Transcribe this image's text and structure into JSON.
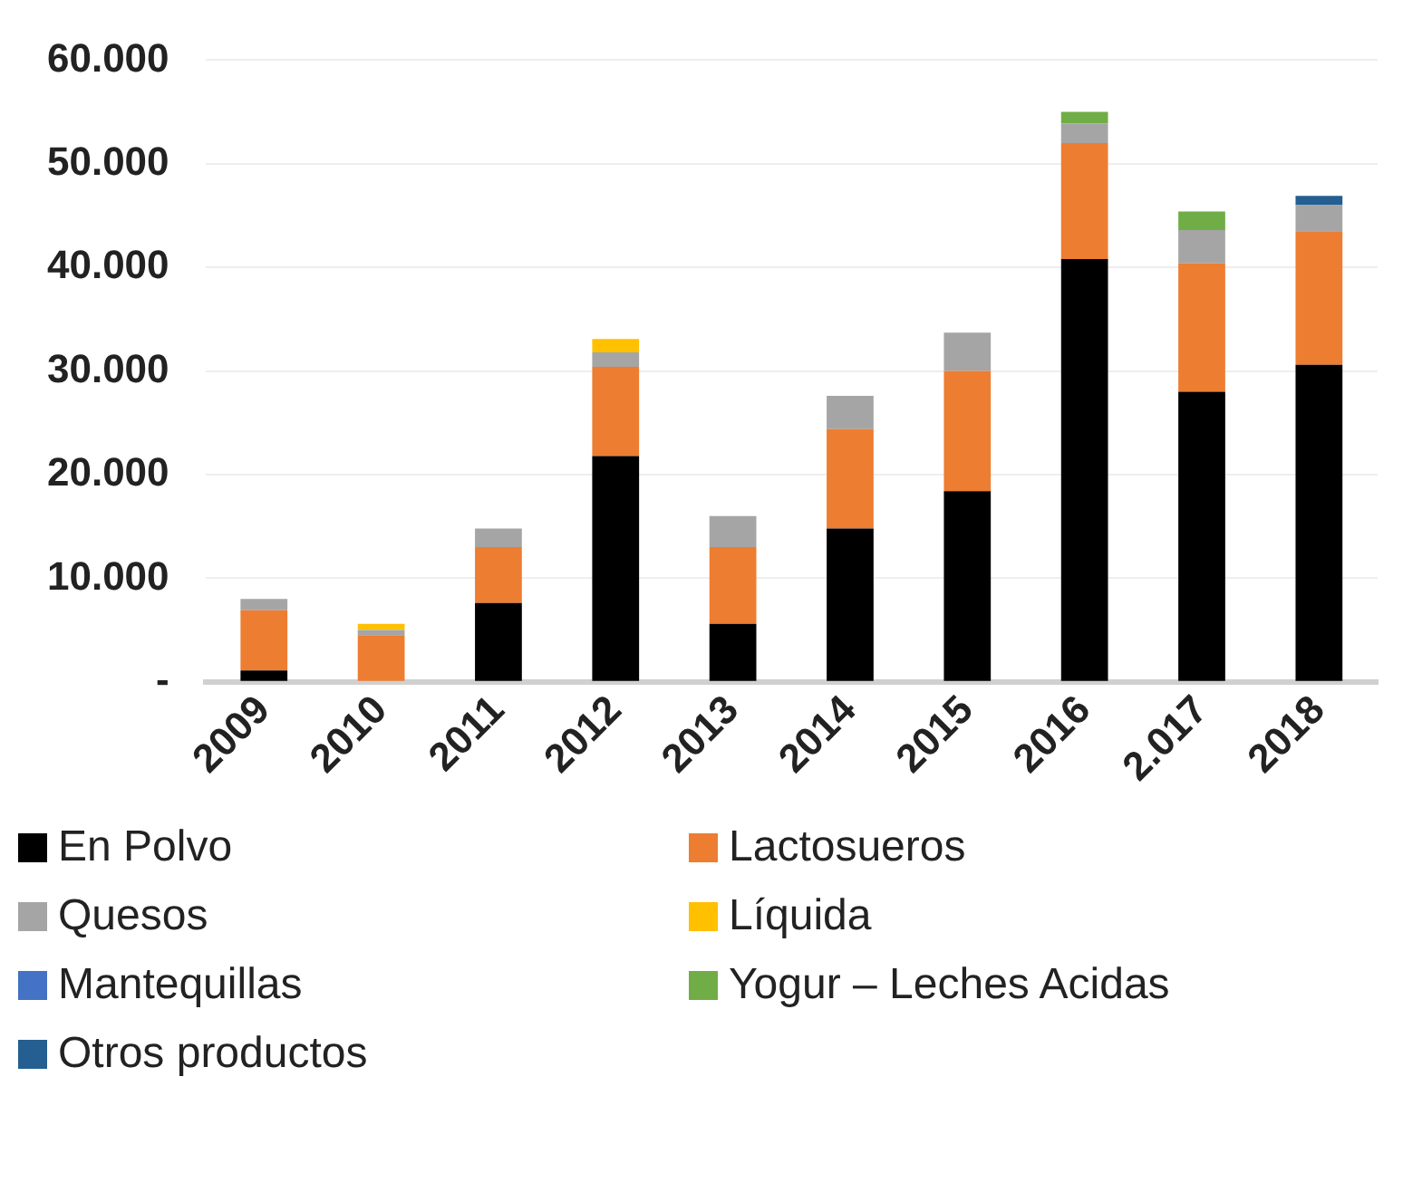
{
  "chart_data": {
    "type": "bar",
    "stacked": true,
    "categories": [
      "2009",
      "2010",
      "2011",
      "2012",
      "2013",
      "2014",
      "2015",
      "2016",
      "2.017",
      "2018"
    ],
    "series": [
      {
        "name": "En Polvo",
        "color": "#000000",
        "values": [
          1100,
          0,
          7600,
          21800,
          5600,
          14800,
          18400,
          40800,
          28000,
          30600
        ]
      },
      {
        "name": "Lactosueros",
        "color": "#ed7d31",
        "values": [
          5800,
          4500,
          5400,
          8600,
          7400,
          9600,
          11600,
          11200,
          12400,
          12900
        ]
      },
      {
        "name": "Quesos",
        "color": "#a5a5a5",
        "values": [
          1100,
          500,
          1800,
          1400,
          3000,
          3200,
          3700,
          1900,
          3200,
          2500
        ]
      },
      {
        "name": "Líquida",
        "color": "#ffc000",
        "values": [
          0,
          600,
          0,
          1300,
          0,
          0,
          0,
          0,
          0,
          0
        ]
      },
      {
        "name": "Mantequillas",
        "color": "#4472c4",
        "values": [
          0,
          0,
          0,
          0,
          0,
          0,
          0,
          0,
          0,
          0
        ]
      },
      {
        "name": "Yogur – Leches Acidas",
        "color": "#70ad47",
        "values": [
          0,
          0,
          0,
          0,
          0,
          0,
          0,
          1100,
          1800,
          0
        ]
      },
      {
        "name": "Otros productos",
        "color": "#255e91",
        "values": [
          0,
          0,
          0,
          0,
          0,
          0,
          0,
          0,
          0,
          900
        ]
      }
    ],
    "ylim": [
      0,
      60000
    ],
    "yticks": [
      {
        "value": 0,
        "label": "-"
      },
      {
        "value": 10000,
        "label": "10.000"
      },
      {
        "value": 20000,
        "label": "20.000"
      },
      {
        "value": 30000,
        "label": "30.000"
      },
      {
        "value": 40000,
        "label": "40.000"
      },
      {
        "value": 50000,
        "label": "50.000"
      },
      {
        "value": 60000,
        "label": "60.000"
      }
    ],
    "grid": "y",
    "legend": "bottom"
  }
}
